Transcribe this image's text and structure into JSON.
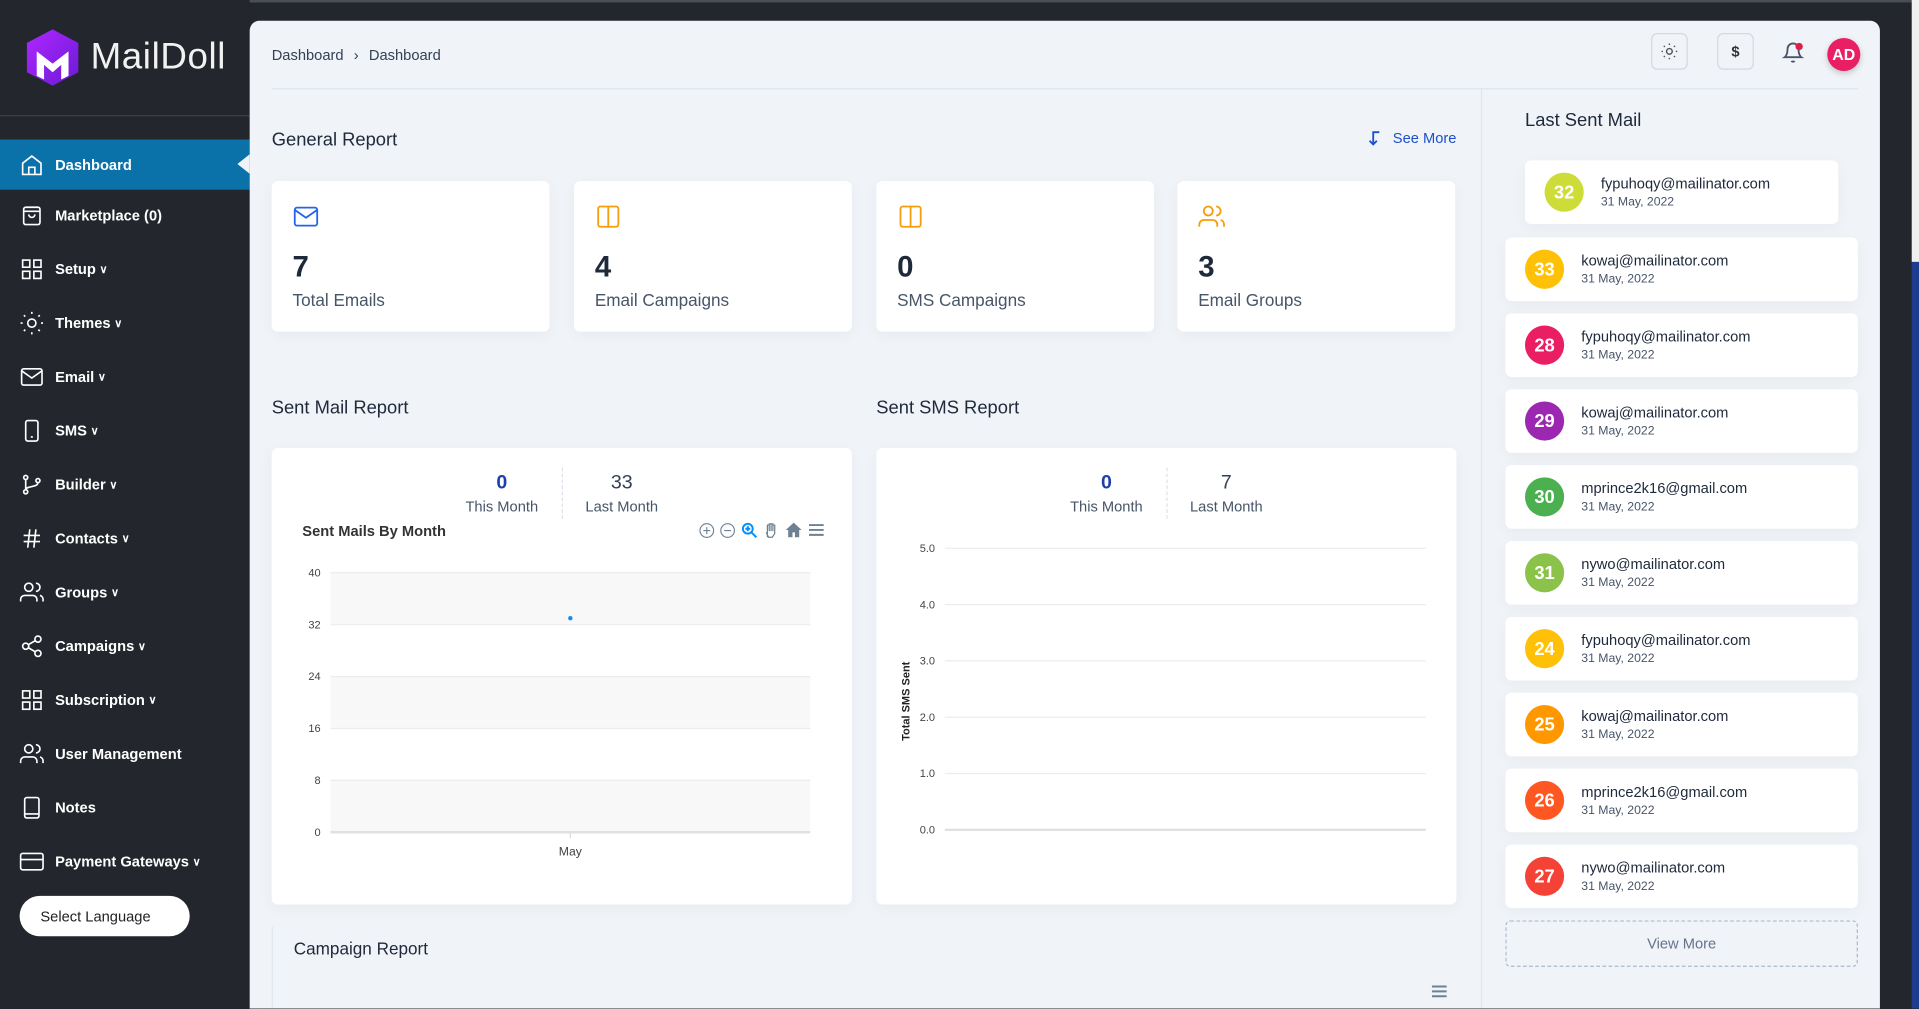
{
  "app": {
    "logo_text": "MailDoll"
  },
  "sidebar": {
    "items": [
      {
        "label": "Dashboard",
        "icon": "home-icon",
        "active": true
      },
      {
        "label": "Marketplace (0)",
        "icon": "shopping-bag-icon"
      },
      {
        "label": "Setup",
        "icon": "grid-icon",
        "caret": true
      },
      {
        "label": "Themes",
        "icon": "sun-icon",
        "caret": true
      },
      {
        "label": "Email",
        "icon": "mail-icon",
        "caret": true
      },
      {
        "label": "SMS",
        "icon": "phone-icon",
        "caret": true
      },
      {
        "label": "Builder",
        "icon": "git-branch-icon",
        "caret": true
      },
      {
        "label": "Contacts",
        "icon": "hash-icon",
        "caret": true
      },
      {
        "label": "Groups",
        "icon": "users-icon",
        "caret": true
      },
      {
        "label": "Campaigns",
        "icon": "share-icon",
        "caret": true
      },
      {
        "label": "Subscription",
        "icon": "grid-icon",
        "caret": true
      },
      {
        "label": "User Management",
        "icon": "users-icon"
      },
      {
        "label": "Notes",
        "icon": "tablet-icon"
      },
      {
        "label": "Payment Gateways",
        "icon": "credit-card-icon",
        "caret": true
      }
    ],
    "language_button": "Select Language"
  },
  "header": {
    "breadcrumb": [
      "Dashboard",
      "Dashboard"
    ],
    "currency_symbol": "$",
    "avatar_initials": "AD"
  },
  "general_report": {
    "title": "General Report",
    "see_more": "See More",
    "cards": [
      {
        "value": "7",
        "label": "Total Emails",
        "icon": "mail-icon",
        "color": "#2563eb"
      },
      {
        "value": "4",
        "label": "Email Campaigns",
        "icon": "columns-icon",
        "color": "#f59e0b"
      },
      {
        "value": "0",
        "label": "SMS Campaigns",
        "icon": "columns-icon",
        "color": "#f59e0b"
      },
      {
        "value": "3",
        "label": "Email Groups",
        "icon": "users-icon",
        "color": "#f59e0b"
      }
    ]
  },
  "sent_mail": {
    "title": "Sent Mail Report",
    "this_month": "0",
    "this_month_label": "This Month",
    "last_month": "33",
    "last_month_label": "Last Month"
  },
  "sent_sms": {
    "title": "Sent SMS Report",
    "this_month": "0",
    "this_month_label": "This Month",
    "last_month": "7",
    "last_month_label": "Last Month"
  },
  "campaign_report": {
    "title": "Campaign Report"
  },
  "last_sent": {
    "title": "Last Sent Mail",
    "view_more": "View More",
    "items": [
      {
        "id": "32",
        "email": "fypuhoqy@mailinator.com",
        "date": "31 May, 2022",
        "color": "#cddc39"
      },
      {
        "id": "33",
        "email": "kowaj@mailinator.com",
        "date": "31 May, 2022",
        "color": "#ffc107"
      },
      {
        "id": "28",
        "email": "fypuhoqy@mailinator.com",
        "date": "31 May, 2022",
        "color": "#e91e63"
      },
      {
        "id": "29",
        "email": "kowaj@mailinator.com",
        "date": "31 May, 2022",
        "color": "#9c27b0"
      },
      {
        "id": "30",
        "email": "mprince2k16@gmail.com",
        "date": "31 May, 2022",
        "color": "#4caf50"
      },
      {
        "id": "31",
        "email": "nywo@mailinator.com",
        "date": "31 May, 2022",
        "color": "#8bc34a"
      },
      {
        "id": "24",
        "email": "fypuhoqy@mailinator.com",
        "date": "31 May, 2022",
        "color": "#ffc107"
      },
      {
        "id": "25",
        "email": "kowaj@mailinator.com",
        "date": "31 May, 2022",
        "color": "#ff9800"
      },
      {
        "id": "26",
        "email": "mprince2k16@gmail.com",
        "date": "31 May, 2022",
        "color": "#ff5722"
      },
      {
        "id": "27",
        "email": "nywo@mailinator.com",
        "date": "31 May, 2022",
        "color": "#f44336"
      }
    ]
  },
  "chart_data": [
    {
      "type": "scatter",
      "title": "Sent Mails By Month",
      "categories": [
        "May"
      ],
      "values": [
        33
      ],
      "ylim": [
        0,
        40
      ],
      "yticks": [
        "0",
        "8",
        "16",
        "24",
        "32",
        "40"
      ],
      "grid": true,
      "color": "#1e88e5"
    },
    {
      "type": "line",
      "title": "",
      "ylabel": "Total SMS Sent",
      "categories": [],
      "values": [],
      "ylim": [
        0,
        5
      ],
      "yticks": [
        "0.0",
        "1.0",
        "2.0",
        "3.0",
        "4.0",
        "5.0"
      ],
      "grid": true
    }
  ]
}
